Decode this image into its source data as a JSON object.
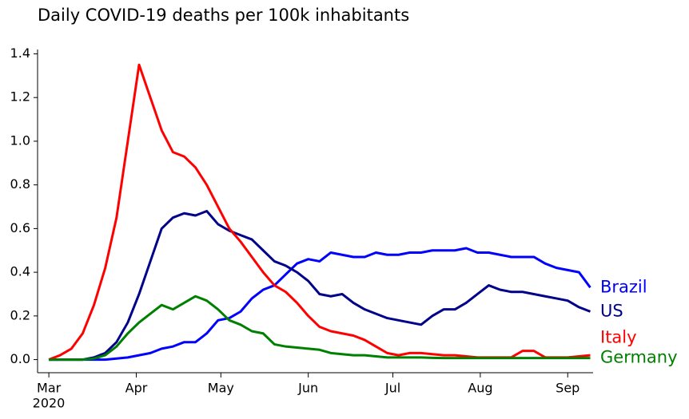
{
  "chart_data": {
    "type": "line",
    "title": "Daily COVID-19 deaths per 100k inhabitants",
    "x": [
      61,
      65,
      69,
      73,
      77,
      81,
      85,
      89,
      93,
      97,
      101,
      105,
      109,
      113,
      117,
      121,
      125,
      129,
      133,
      137,
      141,
      145,
      149,
      153,
      157,
      161,
      165,
      169,
      173,
      177,
      181,
      185,
      189,
      193,
      197,
      201,
      205,
      209,
      213,
      217,
      221,
      225,
      229,
      233,
      237,
      241,
      245,
      249,
      253
    ],
    "xlim": [
      57,
      254
    ],
    "xticks": [
      {
        "value": 61,
        "label": "Mar"
      },
      {
        "value": 92,
        "label": "Apr"
      },
      {
        "value": 122,
        "label": "May"
      },
      {
        "value": 153,
        "label": "Jun"
      },
      {
        "value": 183,
        "label": "Jul"
      },
      {
        "value": 214,
        "label": "Aug"
      },
      {
        "value": 245,
        "label": "Sep"
      }
    ],
    "x_year_label": "2020",
    "ylim": [
      -0.06,
      1.42
    ],
    "yticks": [
      {
        "value": 0,
        "label": "0.0"
      },
      0.2,
      0.4,
      0.6,
      0.8,
      {
        "value": 1,
        "label": "1.0"
      },
      1.2,
      1.4
    ],
    "series": [
      {
        "name": "Brazil",
        "color": "#0000ff",
        "values": [
          0,
          0,
          0,
          0,
          0,
          0,
          0.005,
          0.01,
          0.02,
          0.03,
          0.05,
          0.06,
          0.08,
          0.08,
          0.12,
          0.18,
          0.19,
          0.22,
          0.28,
          0.32,
          0.34,
          0.39,
          0.44,
          0.46,
          0.45,
          0.49,
          0.48,
          0.47,
          0.47,
          0.49,
          0.48,
          0.48,
          0.49,
          0.49,
          0.5,
          0.5,
          0.5,
          0.51,
          0.49,
          0.49,
          0.48,
          0.47,
          0.47,
          0.47,
          0.44,
          0.42,
          0.41,
          0.4,
          0.33
        ]
      },
      {
        "name": "US",
        "color": "#00008b",
        "values": [
          0,
          0,
          0,
          0,
          0.01,
          0.03,
          0.08,
          0.17,
          0.3,
          0.45,
          0.6,
          0.65,
          0.67,
          0.66,
          0.68,
          0.62,
          0.59,
          0.57,
          0.55,
          0.5,
          0.45,
          0.43,
          0.4,
          0.36,
          0.3,
          0.29,
          0.3,
          0.26,
          0.23,
          0.21,
          0.19,
          0.18,
          0.17,
          0.16,
          0.2,
          0.23,
          0.23,
          0.26,
          0.3,
          0.34,
          0.32,
          0.31,
          0.31,
          0.3,
          0.29,
          0.28,
          0.27,
          0.24,
          0.22
        ]
      },
      {
        "name": "Italy",
        "color": "#ff0000",
        "values": [
          0,
          0.02,
          0.05,
          0.12,
          0.25,
          0.42,
          0.65,
          1.0,
          1.35,
          1.2,
          1.05,
          0.95,
          0.93,
          0.88,
          0.8,
          0.7,
          0.6,
          0.54,
          0.47,
          0.4,
          0.34,
          0.31,
          0.26,
          0.2,
          0.15,
          0.13,
          0.12,
          0.11,
          0.09,
          0.06,
          0.03,
          0.02,
          0.03,
          0.03,
          0.025,
          0.02,
          0.02,
          0.015,
          0.01,
          0.01,
          0.01,
          0.01,
          0.04,
          0.04,
          0.01,
          0.01,
          0.01,
          0.015,
          0.02
        ]
      },
      {
        "name": "Germany",
        "color": "#008000",
        "values": [
          0,
          0,
          0,
          0,
          0.005,
          0.02,
          0.06,
          0.12,
          0.17,
          0.21,
          0.25,
          0.23,
          0.26,
          0.29,
          0.27,
          0.23,
          0.18,
          0.16,
          0.13,
          0.12,
          0.07,
          0.06,
          0.055,
          0.05,
          0.045,
          0.03,
          0.025,
          0.02,
          0.02,
          0.015,
          0.01,
          0.01,
          0.01,
          0.01,
          0.008,
          0.007,
          0.007,
          0.007,
          0.007,
          0.007,
          0.007,
          0.007,
          0.007,
          0.007,
          0.007,
          0.007,
          0.007,
          0.007,
          0.007
        ]
      }
    ]
  }
}
